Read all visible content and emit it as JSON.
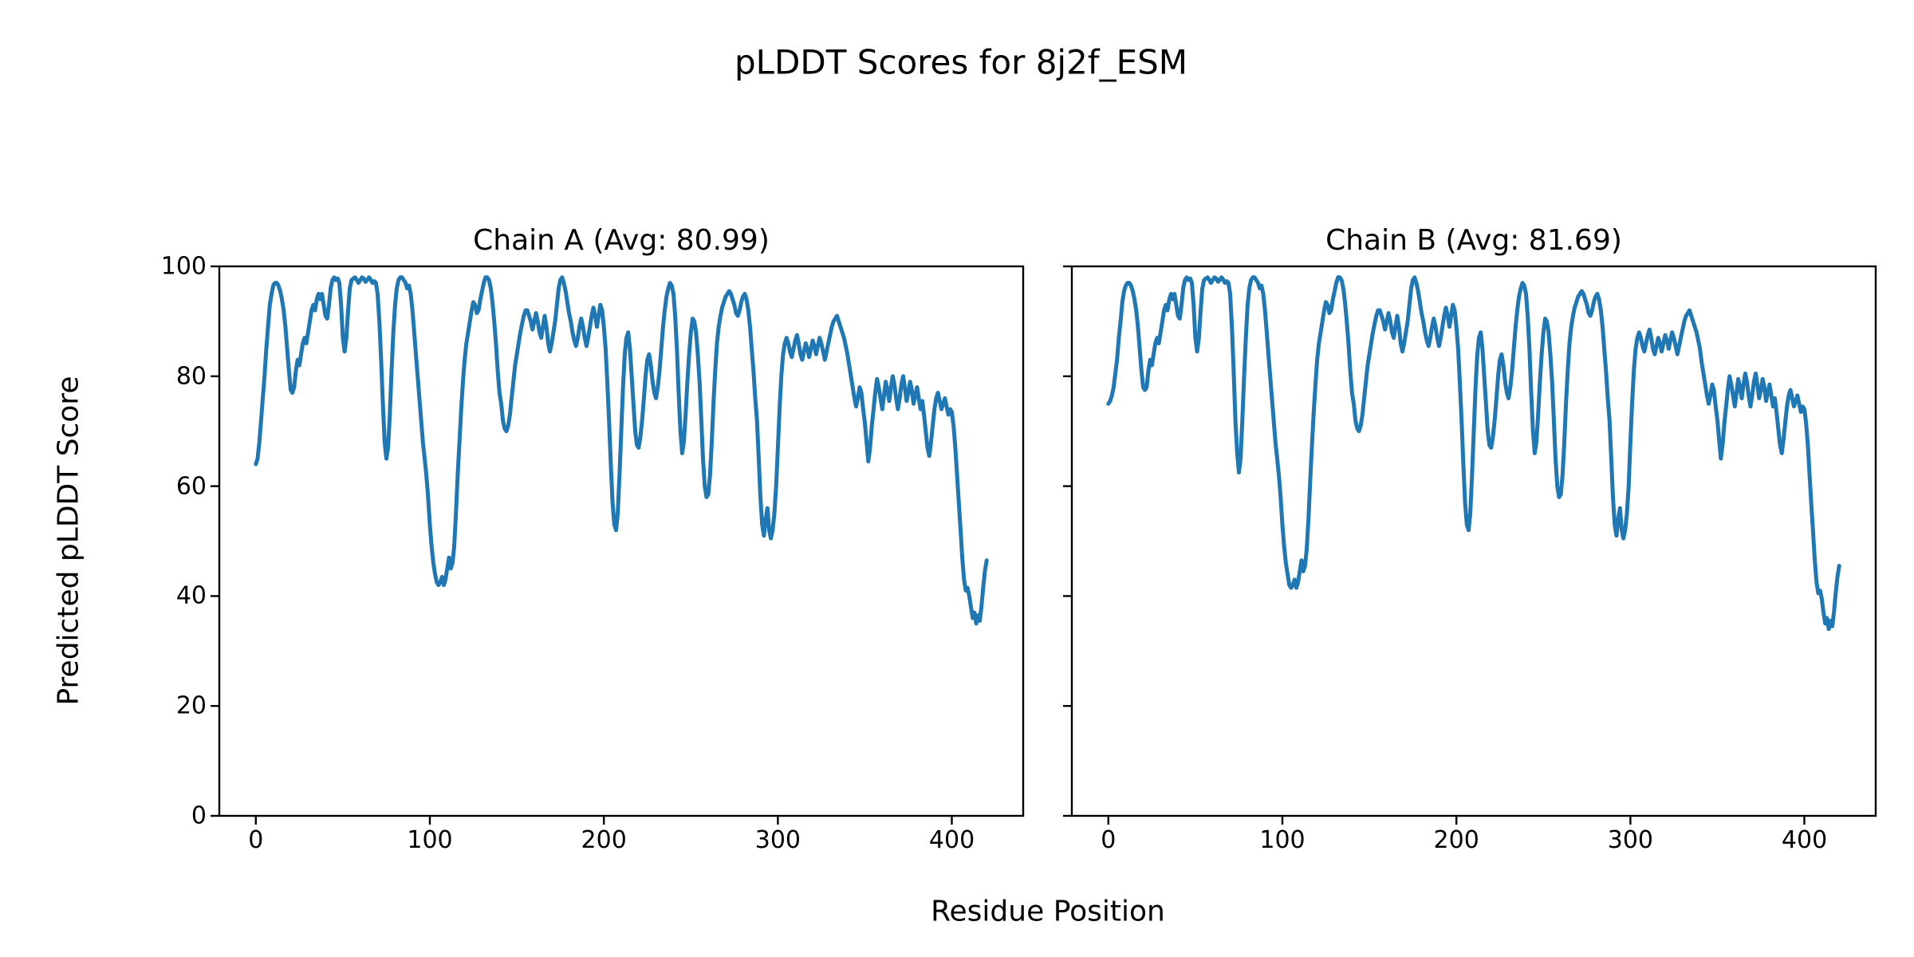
{
  "figure": {
    "title": "pLDDT Scores for 8j2f_ESM",
    "xlabel": "Residue Position",
    "ylabel": "Predicted pLDDT Score",
    "background_color": "#ffffff",
    "text_color": "#000000",
    "line_color": "#1f77b4"
  },
  "chart_data": [
    {
      "type": "line",
      "title": "Chain A (Avg: 80.99)",
      "chain": "A",
      "average_plddt": 80.99,
      "xlim": [
        -21,
        441
      ],
      "ylim": [
        0,
        100
      ],
      "xticks": [
        0,
        100,
        200,
        300,
        400
      ],
      "yticks": [
        0,
        20,
        40,
        60,
        80,
        100
      ],
      "grid": false,
      "legend": "none",
      "series": [
        {
          "name": "pLDDT",
          "color": "#1f77b4",
          "x0": 0,
          "dx": 1,
          "y": [
            64,
            65,
            68,
            72,
            76,
            80,
            85,
            89,
            93,
            95,
            96.5,
            97,
            97,
            96.5,
            95.5,
            94,
            92,
            89,
            85,
            81,
            77.5,
            77,
            78,
            81,
            83,
            82,
            84,
            86,
            87,
            86,
            88,
            90,
            92,
            93,
            92,
            94,
            95,
            94,
            95,
            93,
            91,
            90.5,
            93,
            96,
            97.5,
            98,
            97.5,
            97.8,
            97,
            93,
            87,
            84.5,
            87,
            92,
            96,
            97.5,
            97.8,
            98,
            97.5,
            97,
            97.5,
            98,
            97.8,
            97.2,
            97.5,
            98,
            97.6,
            97,
            97.3,
            97,
            95,
            90,
            83,
            75,
            68,
            65,
            67,
            73,
            81,
            88,
            93,
            96,
            97.5,
            98,
            98,
            97.5,
            97,
            96,
            96.5,
            95,
            92,
            88,
            84,
            80,
            76,
            72,
            68,
            65,
            62,
            58,
            53,
            49,
            46,
            44,
            42.5,
            42,
            42.5,
            43.5,
            42,
            43,
            45,
            47,
            45,
            46,
            49,
            55,
            62,
            68,
            74,
            79,
            83,
            86,
            88,
            90,
            92,
            93.5,
            93,
            91.5,
            92,
            94,
            95.5,
            97,
            98,
            98,
            97.5,
            96,
            93.5,
            90,
            86,
            81,
            77,
            75,
            72,
            70.5,
            70,
            71,
            73,
            76,
            79,
            82,
            84,
            86,
            88,
            89.5,
            91,
            92,
            92,
            91,
            90,
            88.5,
            90,
            91.5,
            90,
            88,
            87,
            89,
            91,
            89,
            86,
            84.5,
            86,
            88,
            90,
            93,
            96,
            97.5,
            98,
            97,
            95.5,
            93.5,
            91.5,
            90,
            88,
            86.5,
            85.5,
            87,
            89,
            90.5,
            89,
            87,
            85.5,
            87,
            89,
            91,
            92.5,
            91,
            89,
            91,
            93,
            92,
            89,
            85,
            79,
            72,
            64,
            57,
            53,
            52,
            55,
            62,
            70,
            78,
            84,
            87,
            88,
            85,
            80,
            75,
            70,
            67.5,
            67,
            69,
            72,
            76,
            80,
            83,
            84,
            82,
            79,
            77,
            76,
            78,
            81,
            85,
            89,
            92,
            94.5,
            96,
            97,
            96.5,
            95,
            91,
            85,
            77,
            70,
            66,
            68,
            73,
            79,
            84,
            88,
            90.5,
            90,
            88,
            84,
            79,
            72,
            65,
            60,
            58,
            58.5,
            62,
            68,
            75,
            81,
            86,
            89,
            91,
            92.5,
            93.5,
            94.5,
            95,
            95.5,
            95,
            94,
            93,
            91.5,
            91,
            92,
            93.5,
            94.5,
            95,
            94,
            92,
            89,
            85,
            81,
            76,
            72,
            65,
            58,
            53,
            51,
            54,
            56,
            52,
            50.5,
            52,
            55,
            60,
            67,
            74,
            80,
            84,
            86,
            87,
            86,
            84.5,
            83.5,
            85,
            86.5,
            87.5,
            86,
            84,
            83,
            84.5,
            86,
            85,
            83.5,
            85,
            86.5,
            85.5,
            84,
            85.5,
            87,
            86,
            84.5,
            83,
            84.5,
            86,
            87.5,
            89,
            90,
            90.5,
            91,
            90,
            89,
            88,
            87,
            85.5,
            84,
            82,
            80,
            78,
            76,
            74.5,
            76,
            78,
            77,
            74,
            71.5,
            68,
            64.5,
            67,
            71,
            74,
            77,
            79.5,
            78,
            76,
            74,
            76.5,
            79,
            77.5,
            75.5,
            78,
            80,
            78.5,
            76,
            74,
            76,
            78.5,
            80,
            78,
            75.5,
            77,
            79,
            77.5,
            75,
            76.5,
            78,
            76,
            74,
            75.5,
            73,
            70,
            67,
            65.5,
            68,
            71,
            74,
            76,
            77,
            75.5,
            74,
            75,
            76,
            74.5,
            73,
            74,
            73.5,
            71,
            67,
            62,
            57,
            52,
            47,
            43,
            41,
            41.5,
            40,
            38,
            36,
            37,
            35,
            36.5,
            35.5,
            38,
            41.5,
            44.5,
            46.5
          ]
        }
      ]
    },
    {
      "type": "line",
      "title": "Chain B (Avg: 81.69)",
      "chain": "B",
      "average_plddt": 81.69,
      "xlim": [
        -21,
        441
      ],
      "ylim": [
        0,
        100
      ],
      "xticks": [
        0,
        100,
        200,
        300,
        400
      ],
      "yticks": [
        0,
        20,
        40,
        60,
        80,
        100
      ],
      "grid": false,
      "legend": "none",
      "series": [
        {
          "name": "pLDDT",
          "color": "#1f77b4",
          "x0": 0,
          "dx": 1,
          "y": [
            75,
            75.5,
            76.5,
            78,
            80.5,
            83,
            87,
            90,
            93.5,
            95.5,
            96.5,
            97,
            97,
            96.5,
            95.5,
            94,
            92,
            89,
            85,
            81,
            78,
            77.5,
            78,
            81,
            83,
            82,
            84,
            86,
            87,
            86,
            88,
            90,
            92,
            93,
            92,
            94,
            95,
            94,
            95,
            93,
            91,
            90.5,
            93,
            96,
            97.5,
            98,
            97.5,
            97.8,
            97,
            93,
            87,
            84.5,
            87,
            92,
            96,
            97.5,
            97.8,
            98,
            97.5,
            97,
            97.5,
            98,
            97.8,
            97.2,
            97.5,
            98,
            97.6,
            97,
            97.3,
            97,
            95,
            89,
            81,
            72,
            66,
            62.5,
            65,
            72,
            80,
            87,
            93,
            96,
            97.5,
            98,
            98,
            97.5,
            97,
            96,
            96.5,
            95,
            92,
            88,
            84,
            80,
            76,
            72,
            68,
            65,
            62,
            58,
            53,
            49,
            46,
            44,
            42,
            41.5,
            42,
            43,
            41.5,
            42.5,
            44.5,
            46.5,
            44.5,
            45.5,
            48.5,
            54,
            61,
            67.5,
            73.5,
            78.5,
            83,
            86,
            88,
            90,
            92,
            93.5,
            93,
            91.5,
            92,
            94,
            95.5,
            97,
            98,
            98,
            97.5,
            96,
            93.5,
            90,
            86,
            81,
            77,
            75,
            72,
            70.5,
            70,
            71,
            73,
            76,
            79,
            82,
            84,
            86,
            88,
            89.5,
            91,
            92,
            92,
            91,
            90,
            88.5,
            90,
            91.5,
            90,
            88,
            87,
            89,
            91,
            89,
            86,
            84.5,
            86,
            88,
            90,
            93,
            96,
            97.5,
            98,
            97,
            95.5,
            93.5,
            91.5,
            90,
            88,
            86.5,
            85.5,
            87,
            89,
            90.5,
            89,
            87,
            85.5,
            87,
            89,
            91,
            92.5,
            91,
            89,
            91,
            93,
            92,
            89,
            85,
            79,
            72,
            64,
            57,
            53,
            52,
            55,
            62,
            70,
            78,
            84,
            87,
            88,
            85,
            80,
            75,
            70,
            67.5,
            67,
            69,
            72,
            76,
            80,
            83,
            84,
            82,
            79,
            77,
            76,
            78,
            81,
            85,
            89,
            92,
            94.5,
            96,
            97,
            96.5,
            95,
            91,
            85,
            77,
            70,
            66,
            68,
            73,
            79,
            84,
            88,
            90.5,
            90,
            88,
            84,
            79,
            72,
            65,
            60,
            58,
            58.5,
            62,
            68,
            75,
            81,
            86,
            89,
            91,
            92.5,
            93.5,
            94.5,
            95,
            95.5,
            95,
            94,
            93,
            91.5,
            91,
            92,
            93.5,
            94.5,
            95,
            94,
            92,
            89,
            85,
            81,
            76,
            72,
            65,
            58,
            53,
            51,
            54,
            56,
            52,
            50.5,
            52,
            55,
            60,
            68,
            75,
            81,
            85,
            87,
            88,
            87,
            85.5,
            84.5,
            86,
            87.5,
            88.5,
            87,
            85,
            84,
            85.5,
            87,
            86,
            84.5,
            86,
            87.5,
            86.5,
            85,
            86.5,
            88,
            87,
            85.5,
            84,
            85.5,
            87,
            88.5,
            90,
            91,
            91.5,
            92,
            91,
            90,
            89,
            88,
            86.5,
            85,
            82.5,
            80.5,
            78.5,
            76.5,
            75,
            76.5,
            78.5,
            77.5,
            74.5,
            72,
            68.5,
            65,
            67.5,
            71.5,
            74.5,
            77.5,
            80,
            78.5,
            76.5,
            74.5,
            77,
            79.5,
            78,
            76,
            78.5,
            80.5,
            79,
            76.5,
            74.5,
            76.5,
            79,
            80.5,
            78.5,
            76,
            77.5,
            79.5,
            78,
            75.5,
            77,
            78.5,
            76.5,
            74.5,
            76,
            73.5,
            70.5,
            67.5,
            66,
            68.5,
            71.5,
            74.5,
            76.5,
            77.5,
            76,
            74.5,
            75.5,
            76.5,
            75,
            73.5,
            74.5,
            74,
            71.5,
            67.5,
            62,
            56.5,
            51.5,
            46.5,
            42.5,
            40.5,
            41,
            39.5,
            37,
            35,
            36,
            34,
            35.5,
            34.5,
            37,
            40.5,
            43.5,
            45.5
          ]
        }
      ]
    }
  ]
}
